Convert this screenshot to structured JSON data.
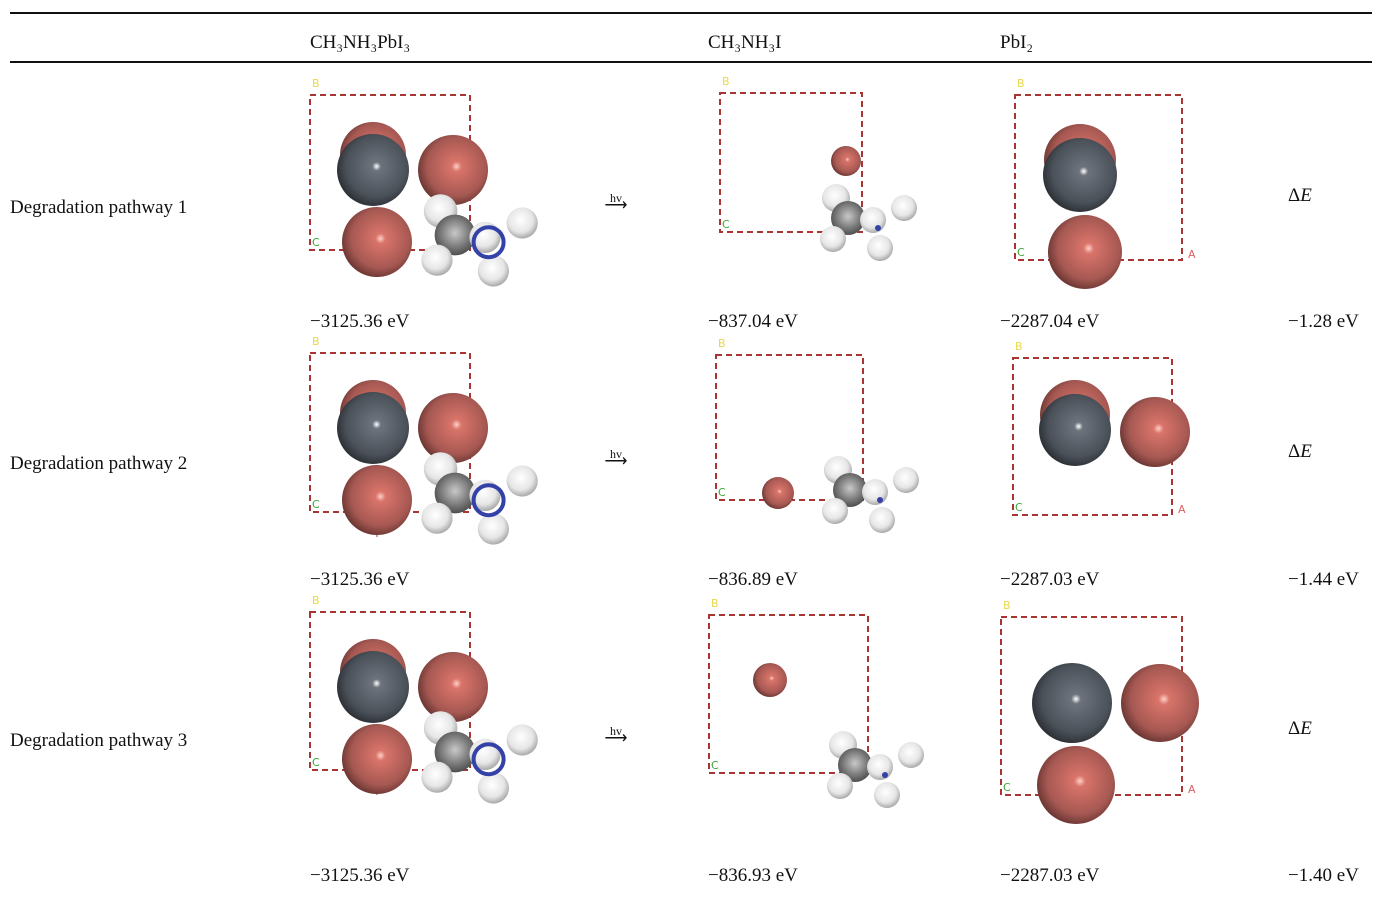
{
  "table": {
    "header": [
      "CH₃NH₃PbI₃",
      "CH₃NH₃I",
      "PbI₂"
    ],
    "arrow_label": "hv",
    "delta_label": {
      "symbol": "Δ",
      "variable": "E"
    },
    "rows": [
      {
        "label": "Degradation pathway 1",
        "energies": [
          "−3125.36 eV",
          "−837.04 eV",
          "−2287.04 eV"
        ],
        "delta": "−1.28 eV",
        "images": [
          {
            "axes": [
              "B",
              "C"
            ]
          },
          {
            "axes": [
              "B",
              "C"
            ]
          },
          {
            "axes": [
              "B",
              "C",
              "A"
            ]
          }
        ]
      },
      {
        "label": "Degradation pathway 2",
        "energies": [
          "−3125.36 eV",
          "−836.89 eV",
          "−2287.03 eV"
        ],
        "delta": "−1.44 eV",
        "images": [
          {
            "axes": [
              "B",
              "C"
            ]
          },
          {
            "axes": [
              "B",
              "C"
            ]
          },
          {
            "axes": [
              "B",
              "C",
              "A"
            ]
          }
        ]
      },
      {
        "label": "Degradation pathway 3",
        "energies": [
          "−3125.36 eV",
          "−836.93 eV",
          "−2287.03 eV"
        ],
        "delta": "−1.40 eV",
        "images": [
          {
            "axes": [
              "B",
              "C"
            ]
          },
          {
            "axes": [
              "B",
              "C"
            ]
          },
          {
            "axes": [
              "B",
              "C",
              "A"
            ]
          }
        ]
      }
    ]
  }
}
